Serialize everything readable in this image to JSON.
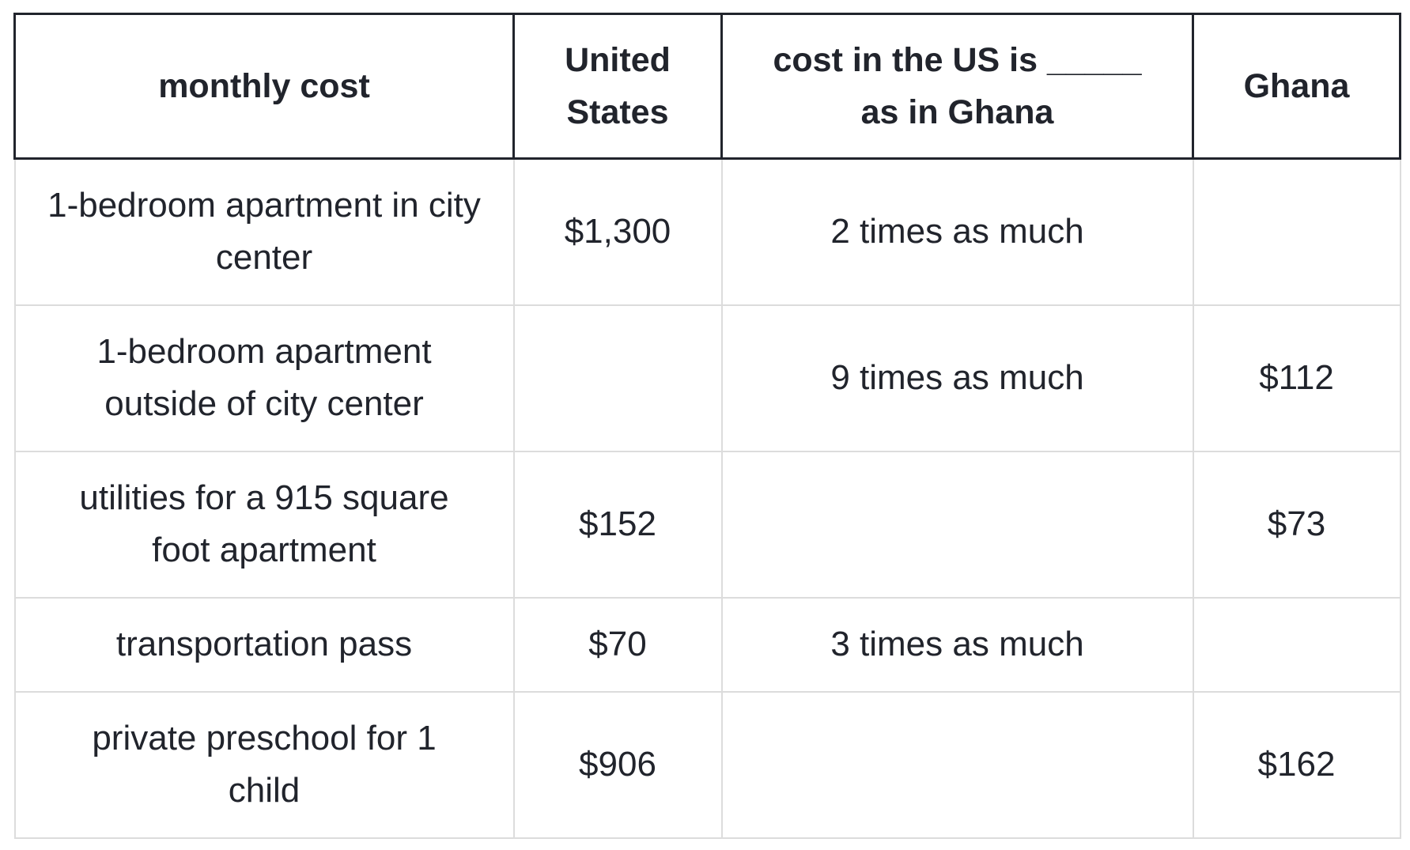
{
  "table": {
    "headers": [
      "monthly cost",
      "United States",
      "cost in the US is _____ as in Ghana",
      "Ghana"
    ],
    "rows": [
      [
        "1-bedroom apartment in city center",
        "$1,300",
        "2 times as much",
        ""
      ],
      [
        "1-bedroom apartment outside of city center",
        "",
        "9 times as much",
        "$112"
      ],
      [
        "utilities for a 915 square foot apartment",
        "$152",
        "",
        "$73"
      ],
      [
        "transportation pass",
        "$70",
        "3 times as much",
        ""
      ],
      [
        "private preschool for 1 child",
        "$906",
        "",
        "$162"
      ]
    ]
  }
}
